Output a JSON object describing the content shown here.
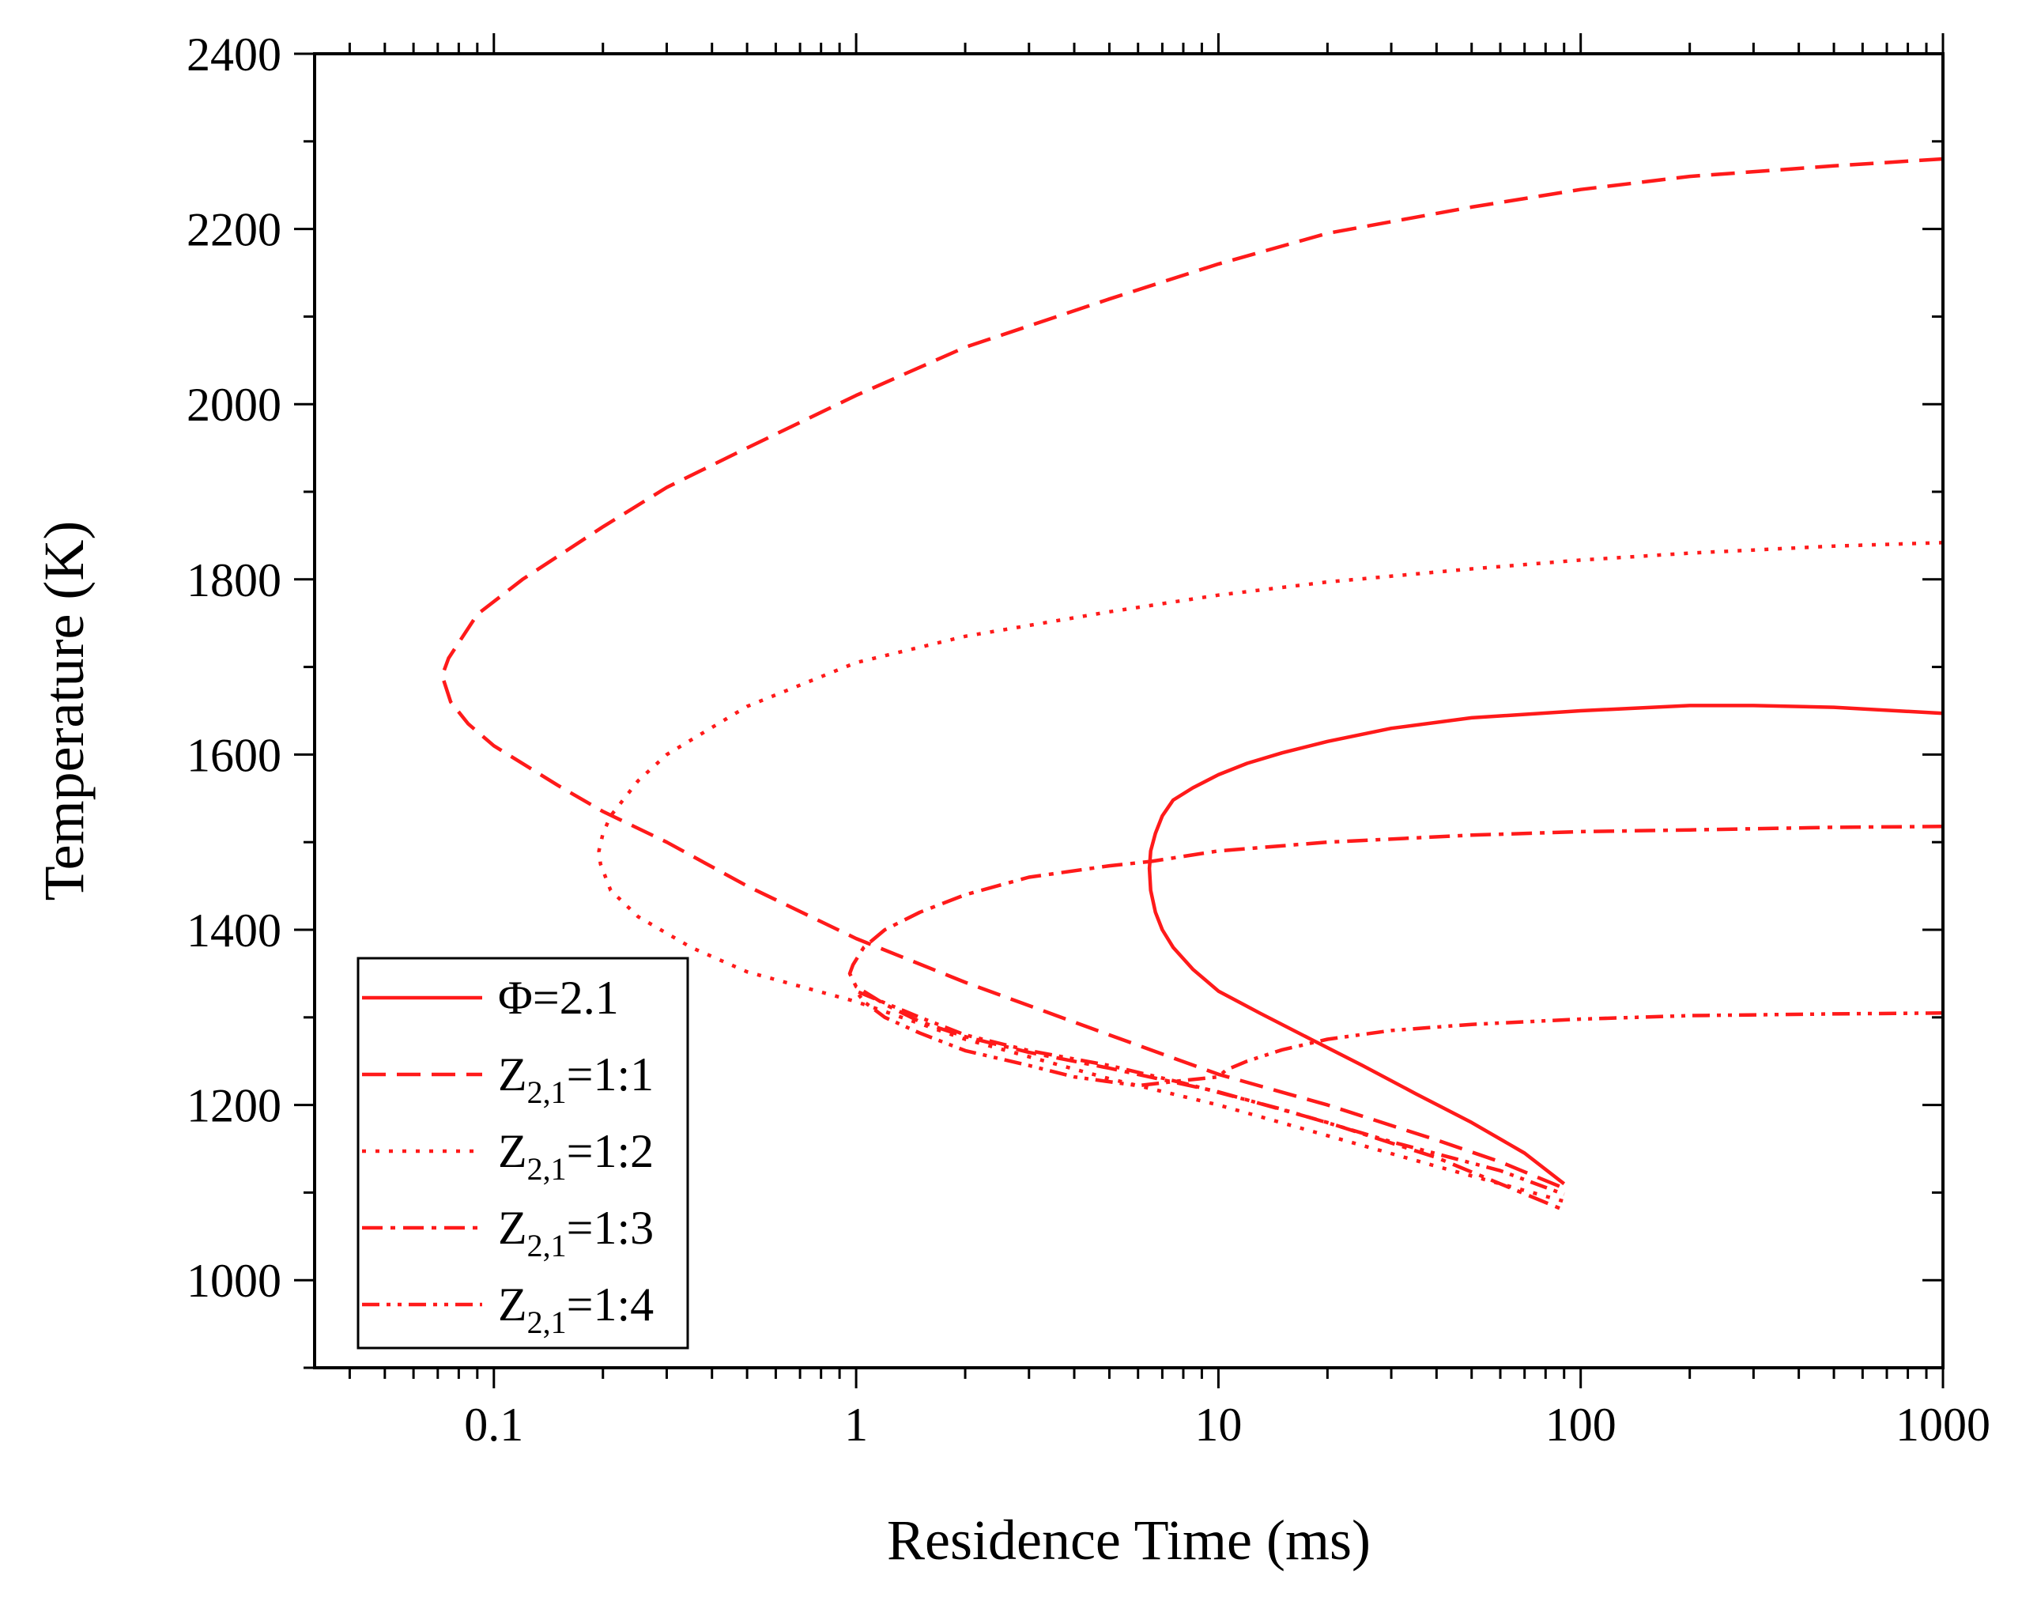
{
  "chart_data": {
    "type": "line",
    "title": "",
    "xlabel": "Residence Time (ms)",
    "ylabel": "Temperature (K)",
    "xscale": "log",
    "xlim": [
      0.032,
      1000
    ],
    "ylim": [
      900,
      2400
    ],
    "xticks": [
      0.1,
      1,
      10,
      100,
      1000
    ],
    "xtick_labels": [
      "0.1",
      "1",
      "10",
      "100",
      "1000"
    ],
    "yticks": [
      1000,
      1200,
      1400,
      1600,
      1800,
      2000,
      2200,
      2400
    ],
    "ytick_labels": [
      "1000",
      "1200",
      "1400",
      "1600",
      "1800",
      "2000",
      "2200",
      "2400"
    ],
    "legend_position": "bottom-left",
    "color": "#ff1a1a",
    "series": [
      {
        "name": "Φ=2.1",
        "legend_main": "Φ=2.1",
        "legend_sub": "",
        "legend_tail": "",
        "dash": "solid",
        "points": [
          [
            1000,
            1647
          ],
          [
            500,
            1654
          ],
          [
            300,
            1656
          ],
          [
            200,
            1656
          ],
          [
            100,
            1650
          ],
          [
            50,
            1642
          ],
          [
            30,
            1630
          ],
          [
            20,
            1615
          ],
          [
            15,
            1602
          ],
          [
            12,
            1590
          ],
          [
            10,
            1577
          ],
          [
            8.5,
            1562
          ],
          [
            7.5,
            1548
          ],
          [
            7,
            1530
          ],
          [
            6.7,
            1510
          ],
          [
            6.5,
            1490
          ],
          [
            6.45,
            1470
          ],
          [
            6.5,
            1445
          ],
          [
            6.7,
            1420
          ],
          [
            7,
            1400
          ],
          [
            7.5,
            1380
          ],
          [
            8.5,
            1355
          ],
          [
            10,
            1330
          ],
          [
            13,
            1305
          ],
          [
            18,
            1275
          ],
          [
            25,
            1245
          ],
          [
            35,
            1213
          ],
          [
            50,
            1180
          ],
          [
            70,
            1145
          ],
          [
            90,
            1110
          ]
        ]
      },
      {
        "name": "Z2,1=1:1",
        "legend_main": "Z",
        "legend_sub": "2,1",
        "legend_tail": "=1:1",
        "dash": "long-dash",
        "points": [
          [
            1000,
            2280
          ],
          [
            500,
            2272
          ],
          [
            200,
            2260
          ],
          [
            100,
            2245
          ],
          [
            50,
            2225
          ],
          [
            20,
            2195
          ],
          [
            10,
            2160
          ],
          [
            5,
            2120
          ],
          [
            2,
            2065
          ],
          [
            1,
            2010
          ],
          [
            0.5,
            1950
          ],
          [
            0.3,
            1905
          ],
          [
            0.2,
            1860
          ],
          [
            0.12,
            1800
          ],
          [
            0.09,
            1760
          ],
          [
            0.075,
            1710
          ],
          [
            0.072,
            1690
          ],
          [
            0.076,
            1660
          ],
          [
            0.085,
            1635
          ],
          [
            0.1,
            1610
          ],
          [
            0.15,
            1565
          ],
          [
            0.2,
            1535
          ],
          [
            0.3,
            1500
          ],
          [
            0.5,
            1450
          ],
          [
            1,
            1390
          ],
          [
            2,
            1340
          ],
          [
            5,
            1280
          ],
          [
            10,
            1235
          ],
          [
            20,
            1200
          ],
          [
            40,
            1160
          ],
          [
            60,
            1135
          ],
          [
            90,
            1105
          ]
        ]
      },
      {
        "name": "Z2,1=1:2",
        "legend_main": "Z",
        "legend_sub": "2,1",
        "legend_tail": "=1:2",
        "dash": "dotted",
        "points": [
          [
            1000,
            1842
          ],
          [
            500,
            1838
          ],
          [
            200,
            1830
          ],
          [
            100,
            1822
          ],
          [
            50,
            1812
          ],
          [
            20,
            1797
          ],
          [
            10,
            1782
          ],
          [
            5,
            1763
          ],
          [
            2,
            1735
          ],
          [
            1,
            1705
          ],
          [
            0.5,
            1655
          ],
          [
            0.3,
            1600
          ],
          [
            0.25,
            1570
          ],
          [
            0.21,
            1530
          ],
          [
            0.2,
            1510
          ],
          [
            0.195,
            1490
          ],
          [
            0.197,
            1475
          ],
          [
            0.21,
            1445
          ],
          [
            0.25,
            1415
          ],
          [
            0.35,
            1380
          ],
          [
            0.5,
            1352
          ],
          [
            1,
            1318
          ],
          [
            2,
            1275
          ],
          [
            5,
            1230
          ],
          [
            10,
            1200
          ],
          [
            20,
            1165
          ],
          [
            40,
            1130
          ],
          [
            60,
            1110
          ],
          [
            90,
            1090
          ]
        ]
      },
      {
        "name": "Z2,1=1:3",
        "legend_main": "Z",
        "legend_sub": "2,1",
        "legend_tail": "=1:3",
        "dash": "dash-dot",
        "points": [
          [
            1000,
            1518
          ],
          [
            500,
            1517
          ],
          [
            200,
            1514
          ],
          [
            100,
            1512
          ],
          [
            50,
            1508
          ],
          [
            20,
            1500
          ],
          [
            10,
            1490
          ],
          [
            6.5,
            1478
          ],
          [
            5,
            1473
          ],
          [
            3,
            1460
          ],
          [
            2,
            1440
          ],
          [
            1.5,
            1420
          ],
          [
            1.2,
            1400
          ],
          [
            1.05,
            1380
          ],
          [
            0.98,
            1360
          ],
          [
            0.96,
            1350
          ],
          [
            1,
            1335
          ],
          [
            1.2,
            1315
          ],
          [
            1.5,
            1295
          ],
          [
            2,
            1278
          ],
          [
            3,
            1260
          ],
          [
            5,
            1242
          ],
          [
            10,
            1215
          ],
          [
            20,
            1180
          ],
          [
            40,
            1140
          ],
          [
            60,
            1110
          ],
          [
            90,
            1080
          ]
        ]
      },
      {
        "name": "Z2,1=1:4",
        "legend_main": "Z",
        "legend_sub": "2,1",
        "legend_tail": "=1:4",
        "dash": "dash-dot-dot",
        "points": [
          [
            1000,
            1305
          ],
          [
            500,
            1304
          ],
          [
            200,
            1302
          ],
          [
            100,
            1298
          ],
          [
            50,
            1292
          ],
          [
            30,
            1285
          ],
          [
            20,
            1275
          ],
          [
            15,
            1263
          ],
          [
            12,
            1250
          ],
          [
            10.5,
            1240
          ],
          [
            10,
            1232
          ],
          [
            8,
            1228
          ],
          [
            6,
            1222
          ],
          [
            4,
            1232
          ],
          [
            3,
            1245
          ],
          [
            2,
            1262
          ],
          [
            1.5,
            1282
          ],
          [
            1.2,
            1300
          ],
          [
            1.05,
            1318
          ],
          [
            1,
            1330
          ],
          [
            1.5,
            1300
          ],
          [
            2,
            1280
          ],
          [
            3,
            1262
          ],
          [
            5,
            1245
          ],
          [
            8,
            1225
          ],
          [
            15,
            1195
          ],
          [
            30,
            1158
          ],
          [
            60,
            1125
          ],
          [
            90,
            1098
          ]
        ]
      }
    ]
  }
}
